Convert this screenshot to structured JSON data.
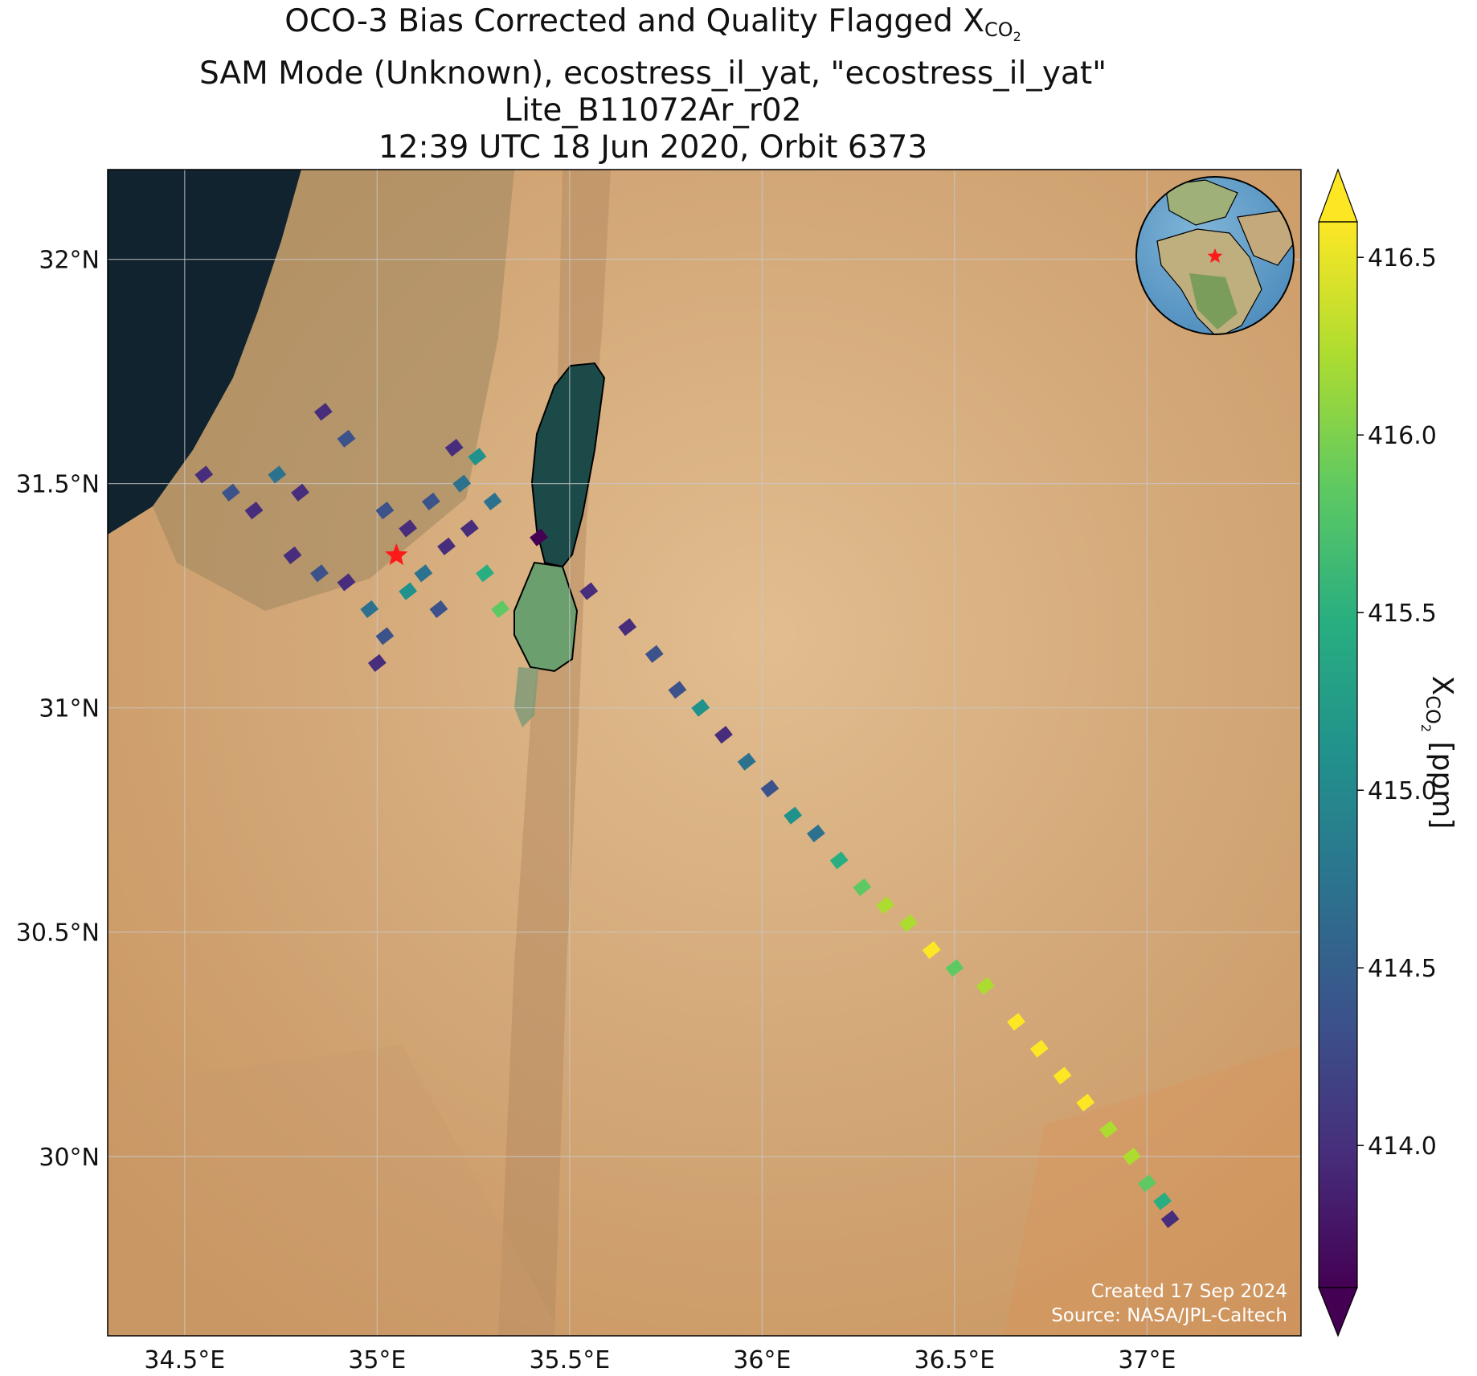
{
  "title": {
    "line1_prefix": "OCO-3 Bias Corrected and Quality Flagged X",
    "line1_sub": "CO",
    "line1_subsub": "2",
    "line2": "SAM Mode (Unknown), ecostress_il_yat, \"ecostress_il_yat\"",
    "line3": "Lite_B11072Ar_r02",
    "line4": "12:39 UTC 18 Jun 2020, Orbit 6373"
  },
  "map": {
    "lon_range": [
      34.3,
      37.4
    ],
    "lat_range": [
      29.6,
      32.2
    ],
    "lon_ticks": [
      {
        "value": 34.5,
        "label": "34.5°E"
      },
      {
        "value": 35.0,
        "label": "35°E"
      },
      {
        "value": 35.5,
        "label": "35.5°E"
      },
      {
        "value": 36.0,
        "label": "36°E"
      },
      {
        "value": 36.5,
        "label": "36.5°E"
      },
      {
        "value": 37.0,
        "label": "37°E"
      }
    ],
    "lat_ticks": [
      {
        "value": 32.0,
        "label": "32°N"
      },
      {
        "value": 31.5,
        "label": "31.5°N"
      },
      {
        "value": 31.0,
        "label": "31°N"
      },
      {
        "value": 30.5,
        "label": "30.5°N"
      },
      {
        "value": 30.0,
        "label": "30°N"
      }
    ],
    "target": {
      "name": "ecostress_il_yat",
      "lon": 35.05,
      "lat": 31.34
    },
    "basemap": "satellite imagery",
    "colors": {
      "sea": "#10232f",
      "desert": "#d3a777",
      "dead_sea": "#1c4a48",
      "target_star": "#ff1a1a"
    },
    "credit_line1": "Created 17 Sep 2024",
    "credit_line2": "Source: NASA/JPL-Caltech",
    "inset_globe": {
      "center_lon": 35.05,
      "center_lat": 31.34,
      "marker": "red star"
    }
  },
  "colorbar": {
    "colormap": "viridis",
    "range": [
      413.6,
      416.6
    ],
    "extend": "both",
    "ticks": [
      {
        "value": 414.0,
        "label": "414.0"
      },
      {
        "value": 414.5,
        "label": "414.5"
      },
      {
        "value": 415.0,
        "label": "415.0"
      },
      {
        "value": 415.5,
        "label": "415.5"
      },
      {
        "value": 416.0,
        "label": "416.0"
      },
      {
        "value": 416.5,
        "label": "416.5"
      }
    ],
    "label_prefix": "X",
    "label_sub": "CO",
    "label_subsub": "2",
    "label_suffix": " [ppm]"
  },
  "chart_data": {
    "type": "scatter",
    "description": "OCO-3 XCO2 soundings along two swaths (approximate)",
    "series": [
      {
        "name": "",
        "points": [
          {
            "lon": 34.55,
            "lat": 31.52,
            "xco2": 413.9
          },
          {
            "lon": 34.62,
            "lat": 31.48,
            "xco2": 414.2
          },
          {
            "lon": 34.68,
            "lat": 31.44,
            "xco2": 413.8
          },
          {
            "lon": 34.74,
            "lat": 31.52,
            "xco2": 414.6
          },
          {
            "lon": 34.8,
            "lat": 31.48,
            "xco2": 414.1
          },
          {
            "lon": 34.86,
            "lat": 31.66,
            "xco2": 413.9
          },
          {
            "lon": 34.92,
            "lat": 31.6,
            "xco2": 414.3
          },
          {
            "lon": 34.78,
            "lat": 31.34,
            "xco2": 413.8
          },
          {
            "lon": 34.85,
            "lat": 31.3,
            "xco2": 414.4
          },
          {
            "lon": 34.92,
            "lat": 31.28,
            "xco2": 414.0
          },
          {
            "lon": 34.98,
            "lat": 31.22,
            "xco2": 414.6
          },
          {
            "lon": 35.02,
            "lat": 31.16,
            "xco2": 414.2
          },
          {
            "lon": 35.0,
            "lat": 31.1,
            "xco2": 413.8
          },
          {
            "lon": 35.08,
            "lat": 31.26,
            "xco2": 415.0
          },
          {
            "lon": 35.12,
            "lat": 31.3,
            "xco2": 414.9
          },
          {
            "lon": 35.16,
            "lat": 31.22,
            "xco2": 414.5
          },
          {
            "lon": 35.02,
            "lat": 31.44,
            "xco2": 414.3
          },
          {
            "lon": 35.08,
            "lat": 31.4,
            "xco2": 413.9
          },
          {
            "lon": 35.14,
            "lat": 31.46,
            "xco2": 414.4
          },
          {
            "lon": 35.18,
            "lat": 31.36,
            "xco2": 414.1
          },
          {
            "lon": 35.22,
            "lat": 31.5,
            "xco2": 414.8
          },
          {
            "lon": 35.26,
            "lat": 31.56,
            "xco2": 415.2
          },
          {
            "lon": 35.3,
            "lat": 31.46,
            "xco2": 414.6
          },
          {
            "lon": 35.24,
            "lat": 31.4,
            "xco2": 414.0
          },
          {
            "lon": 35.2,
            "lat": 31.58,
            "xco2": 413.9
          },
          {
            "lon": 35.28,
            "lat": 31.3,
            "xco2": 415.4
          },
          {
            "lon": 35.32,
            "lat": 31.22,
            "xco2": 415.8
          },
          {
            "lon": 35.42,
            "lat": 31.38,
            "xco2": 413.7
          },
          {
            "lon": 35.55,
            "lat": 31.26,
            "xco2": 413.8
          },
          {
            "lon": 35.65,
            "lat": 31.18,
            "xco2": 413.9
          },
          {
            "lon": 35.72,
            "lat": 31.12,
            "xco2": 414.5
          },
          {
            "lon": 35.78,
            "lat": 31.04,
            "xco2": 414.2
          },
          {
            "lon": 35.84,
            "lat": 31.0,
            "xco2": 415.0
          },
          {
            "lon": 35.9,
            "lat": 30.94,
            "xco2": 413.9
          },
          {
            "lon": 35.96,
            "lat": 30.88,
            "xco2": 414.6
          },
          {
            "lon": 36.02,
            "lat": 30.82,
            "xco2": 414.3
          },
          {
            "lon": 36.08,
            "lat": 30.76,
            "xco2": 415.1
          },
          {
            "lon": 36.14,
            "lat": 30.72,
            "xco2": 414.8
          },
          {
            "lon": 36.2,
            "lat": 30.66,
            "xco2": 415.6
          },
          {
            "lon": 36.26,
            "lat": 30.6,
            "xco2": 416.0
          },
          {
            "lon": 36.32,
            "lat": 30.56,
            "xco2": 416.4
          },
          {
            "lon": 36.38,
            "lat": 30.52,
            "xco2": 416.2
          },
          {
            "lon": 36.44,
            "lat": 30.46,
            "xco2": 416.5
          },
          {
            "lon": 36.5,
            "lat": 30.42,
            "xco2": 415.9
          },
          {
            "lon": 36.58,
            "lat": 30.38,
            "xco2": 416.1
          },
          {
            "lon": 36.66,
            "lat": 30.3,
            "xco2": 416.6
          },
          {
            "lon": 36.72,
            "lat": 30.24,
            "xco2": 416.6
          },
          {
            "lon": 36.78,
            "lat": 30.18,
            "xco2": 416.5
          },
          {
            "lon": 36.84,
            "lat": 30.12,
            "xco2": 416.6
          },
          {
            "lon": 36.9,
            "lat": 30.06,
            "xco2": 416.3
          },
          {
            "lon": 36.96,
            "lat": 30.0,
            "xco2": 416.4
          },
          {
            "lon": 37.0,
            "lat": 29.94,
            "xco2": 416.0
          },
          {
            "lon": 37.04,
            "lat": 29.9,
            "xco2": 415.5
          },
          {
            "lon": 37.06,
            "lat": 29.86,
            "xco2": 414.0
          }
        ]
      }
    ]
  }
}
